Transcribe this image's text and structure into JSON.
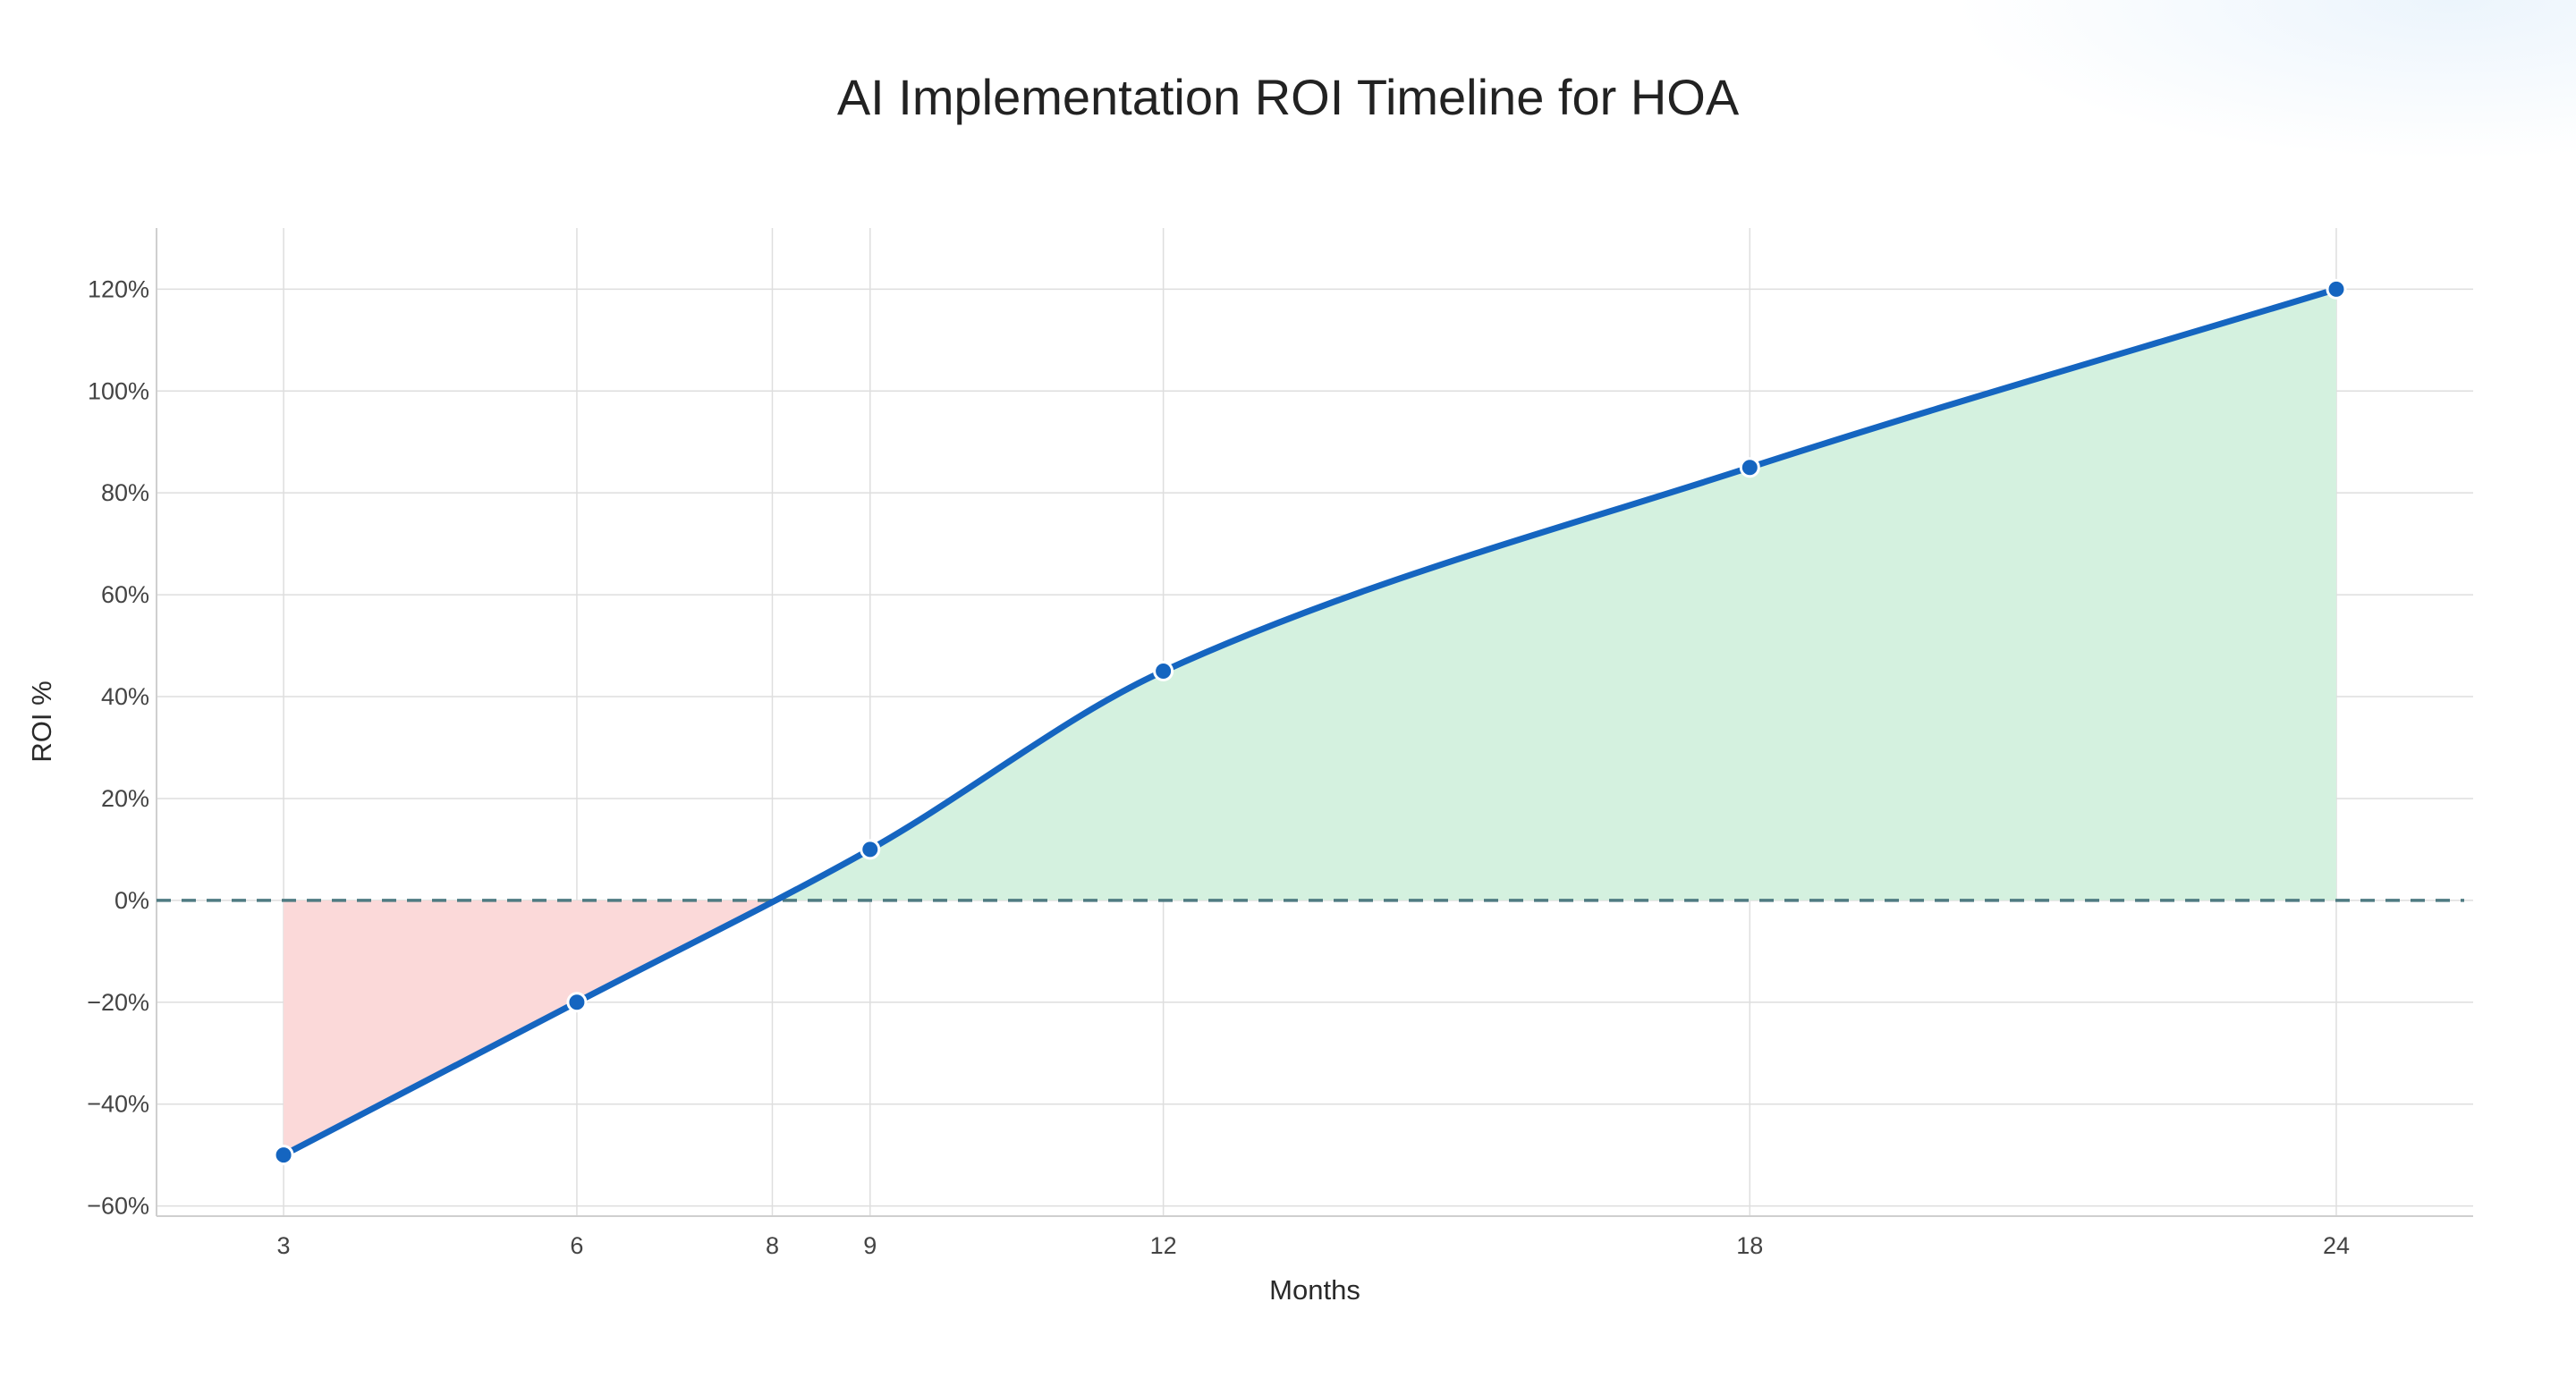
{
  "chart_data": {
    "type": "area",
    "title": "AI Implementation ROI Timeline for HOA",
    "xlabel": "Months",
    "ylabel": "ROI %",
    "x": [
      3,
      6,
      9,
      12,
      18,
      24
    ],
    "series": [
      {
        "values": [
          -50,
          -20,
          10,
          45,
          85,
          120
        ]
      }
    ],
    "x_ticks": [
      3,
      6,
      8,
      9,
      12,
      18,
      24
    ],
    "x_tick_labels": [
      "3",
      "6",
      "8",
      "9",
      "12",
      "18",
      "24"
    ],
    "y_ticks": [
      -60,
      -40,
      -20,
      0,
      20,
      40,
      60,
      80,
      100,
      120
    ],
    "y_tick_labels": [
      "−60%",
      "−40%",
      "−20%",
      "0%",
      "20%",
      "40%",
      "60%",
      "80%",
      "100%",
      "120%"
    ],
    "xlim": [
      1.7,
      25.4
    ],
    "ylim": [
      -62,
      132
    ],
    "break_even_month": 8,
    "reference_line_y": 0,
    "grid": true,
    "legend": "none",
    "colors": {
      "line": "#1565c0",
      "marker_fill": "#1565c0",
      "marker_edge": "#ffffff",
      "positive_fill": "#d4f1df",
      "negative_fill": "#fbd9d9",
      "zero_line": "#4f7b82",
      "grid": "#dedede"
    }
  }
}
